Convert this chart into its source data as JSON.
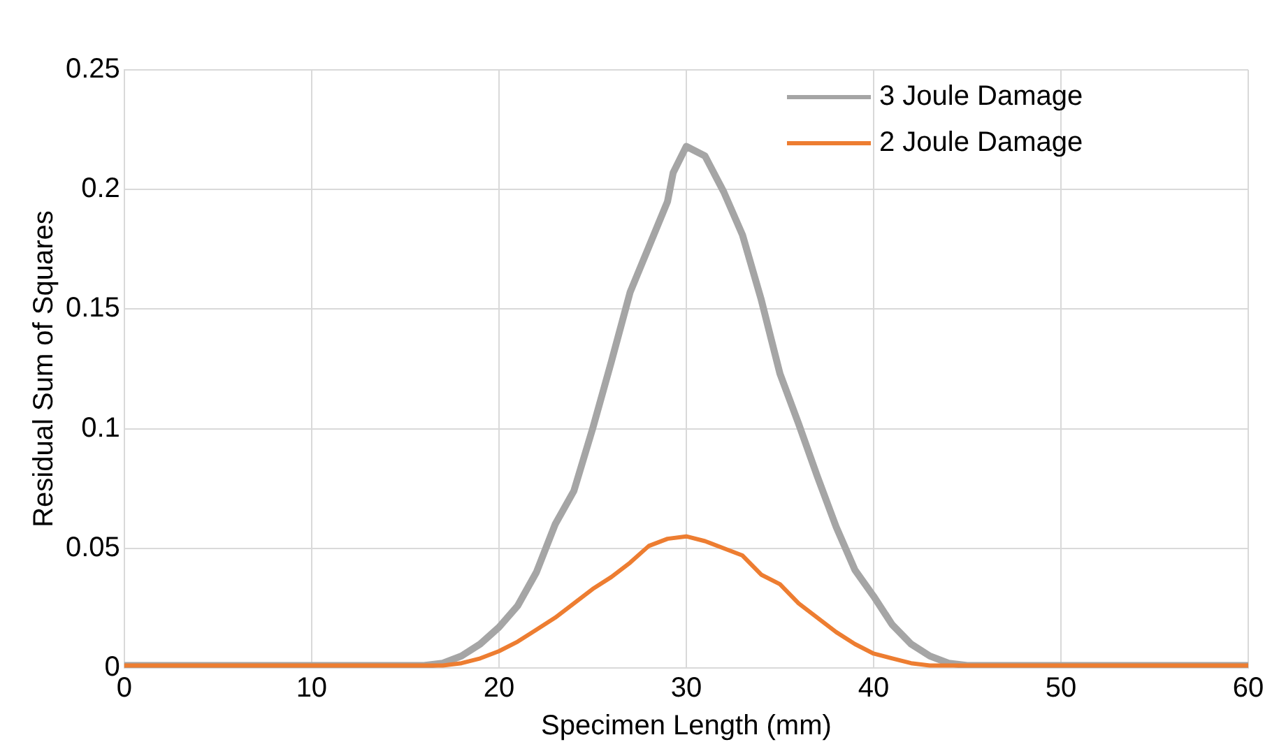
{
  "chart_data": {
    "type": "line",
    "xlabel": "Specimen Length (mm)",
    "ylabel": "Residual Sum of Squares",
    "xlim": [
      0,
      60
    ],
    "xticks": [
      0,
      10,
      20,
      30,
      40,
      50,
      60
    ],
    "ylim": [
      0,
      0.25
    ],
    "yticks": [
      0,
      0.05,
      0.1,
      0.15,
      0.2,
      0.25
    ],
    "grid": true,
    "legend": "top right",
    "marker": "none",
    "line_style": "solid",
    "series": [
      {
        "name": "3 Joule Damage",
        "color": "#a5a5a5",
        "x": [
          0,
          5,
          10,
          15,
          16,
          17,
          18,
          19,
          20,
          21,
          22,
          23,
          24,
          25,
          26,
          27,
          28,
          29,
          29.3,
          30,
          31,
          32,
          33,
          34,
          35,
          36,
          37,
          38,
          39,
          40,
          41,
          42,
          43,
          44,
          45,
          50,
          55,
          60
        ],
        "values": [
          0.001,
          0.001,
          0.001,
          0.001,
          0.001,
          0.002,
          0.005,
          0.01,
          0.017,
          0.026,
          0.04,
          0.06,
          0.074,
          0.1,
          0.128,
          0.157,
          0.176,
          0.195,
          0.207,
          0.218,
          0.214,
          0.199,
          0.181,
          0.154,
          0.123,
          0.102,
          0.08,
          0.059,
          0.041,
          0.03,
          0.018,
          0.01,
          0.005,
          0.002,
          0.001,
          0.001,
          0.001,
          0.001
        ]
      },
      {
        "name": "2 Joule Damage",
        "color": "#ed7d31",
        "x": [
          0,
          5,
          10,
          15,
          16,
          17,
          18,
          19,
          20,
          21,
          22,
          23,
          24,
          25,
          26,
          27,
          28,
          29,
          30,
          31,
          32,
          33,
          34,
          35,
          36,
          37,
          38,
          39,
          40,
          41,
          42,
          43,
          44,
          50,
          55,
          60
        ],
        "values": [
          0.001,
          0.001,
          0.001,
          0.001,
          0.001,
          0.001,
          0.002,
          0.004,
          0.007,
          0.011,
          0.016,
          0.021,
          0.027,
          0.033,
          0.038,
          0.044,
          0.051,
          0.054,
          0.055,
          0.053,
          0.05,
          0.047,
          0.039,
          0.035,
          0.027,
          0.021,
          0.015,
          0.01,
          0.006,
          0.004,
          0.002,
          0.001,
          0.001,
          0.001,
          0.001,
          0.001
        ]
      }
    ]
  }
}
